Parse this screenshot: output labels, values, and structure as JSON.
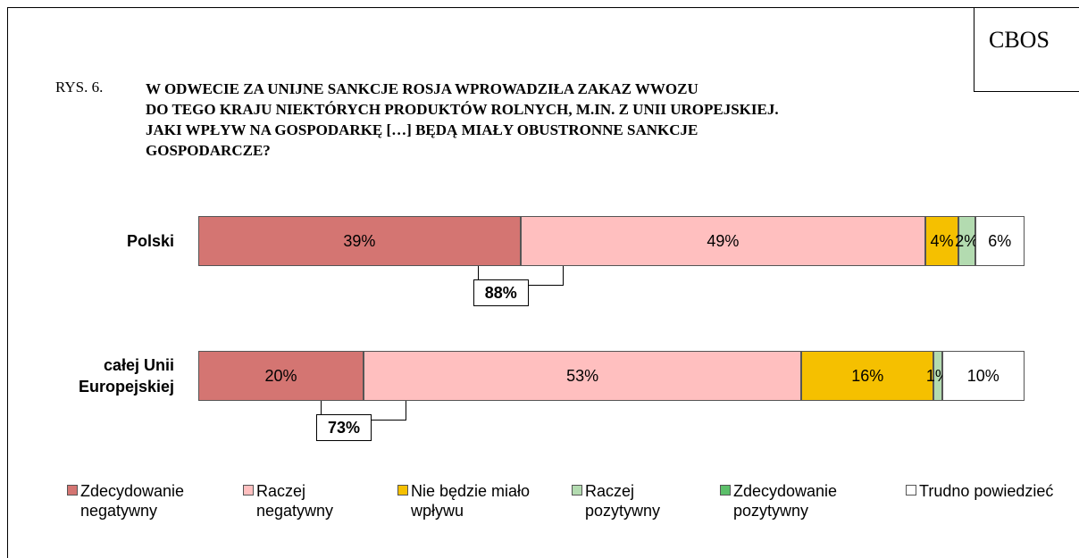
{
  "header": {
    "brand": "CBOS",
    "figure": "RYS. 6."
  },
  "chart_data": {
    "type": "bar",
    "orientation": "horizontal",
    "stacked": true,
    "title_lines": [
      "W ODWECIE ZA UNIJNE SANKCJE ROSJA WPROWADZIŁA ZAKAZ WWOZU",
      "DO TEGO KRAJU NIEKTÓRYCH PRODUKTÓW ROLNYCH, M.IN. Z UNII UROPEJSKIEJ.",
      "JAKI WPŁYW NA GOSPODARKĘ […] BĘDĄ MIAŁY OBUSTRONNE SANKCJE",
      "GOSPODARCZE?"
    ],
    "categories": [
      "Polski",
      "całej Unii Europejskiej"
    ],
    "xlim": [
      0,
      100
    ],
    "series": [
      {
        "name": "Zdecydowanie negatywny",
        "color": "#d47572",
        "values": [
          39,
          20
        ],
        "value_labels": [
          "39%",
          "20%"
        ]
      },
      {
        "name": "Raczej negatywny",
        "color": "#ffbfbf",
        "values": [
          49,
          53
        ],
        "value_labels": [
          "49%",
          "53%"
        ]
      },
      {
        "name": "Nie będzie miało wpływu",
        "color": "#f5c000",
        "values": [
          4,
          16
        ],
        "value_labels": [
          "4%",
          "16%"
        ]
      },
      {
        "name": "Raczej pozytywny",
        "color": "#b3dbb0",
        "values": [
          2,
          1
        ],
        "value_labels": [
          "2%",
          "1%"
        ]
      },
      {
        "name": "Zdecydowanie pozytywny",
        "color": "#5cbf6a",
        "values": [
          0,
          0
        ],
        "value_labels": [
          null,
          null
        ]
      },
      {
        "name": "Trudno powiedzieć",
        "color": "#ffffff",
        "values": [
          6,
          10
        ],
        "value_labels": [
          "6%",
          "10%"
        ]
      }
    ],
    "bracket_labels": [
      "88%",
      "73%"
    ]
  }
}
